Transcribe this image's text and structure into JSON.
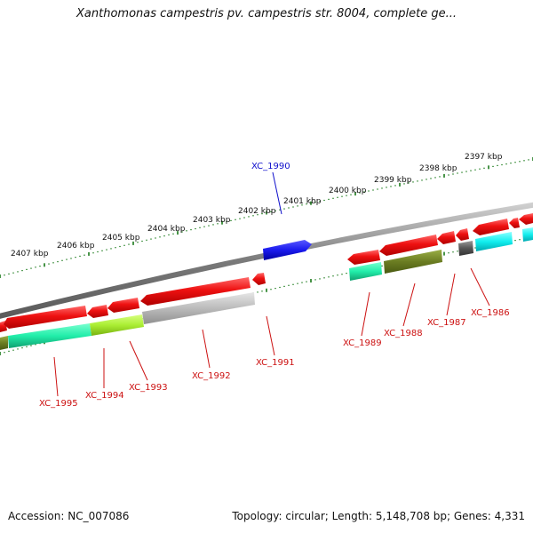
{
  "title": "Xanthomonas campestris pv. campestris str. 8004, complete ge...",
  "footer": {
    "accession": "Accession: NC_007086",
    "summary": "Topology: circular; Length: 5,148,708 bp; Genes: 4,331"
  },
  "ruler_labels": [
    "2407 kbp",
    "2406 kbp",
    "2405 kbp",
    "2404 kbp",
    "2403 kbp",
    "2402 kbp",
    "2401 kbp",
    "2400 kbp",
    "2399 kbp",
    "2398 kbp",
    "2397 kbp"
  ],
  "colors": {
    "backbone": "#8a8a8a",
    "tick": "#1a7a1a",
    "gene_red": "#ee1111",
    "label_red": "#cc1111",
    "label_blue": "#1010cc",
    "forward_gene": "#1a1aee",
    "cog_cyan": "#22eeaa",
    "cog_lime": "#aaee33",
    "cog_gray": "#bbbbbb",
    "cog_olive": "#6b7d22",
    "cog_aqua": "#11eeee",
    "cog_dark": "#555555"
  },
  "gene_labels": [
    {
      "id": "XC_1990",
      "color": "blue"
    },
    {
      "id": "XC_1991",
      "color": "red"
    },
    {
      "id": "XC_1992",
      "color": "red"
    },
    {
      "id": "XC_1993",
      "color": "red"
    },
    {
      "id": "XC_1994",
      "color": "red"
    },
    {
      "id": "XC_1995",
      "color": "red"
    },
    {
      "id": "XC_1989",
      "color": "red"
    },
    {
      "id": "XC_1988",
      "color": "red"
    },
    {
      "id": "XC_1987",
      "color": "red"
    },
    {
      "id": "XC_1986",
      "color": "red"
    }
  ]
}
